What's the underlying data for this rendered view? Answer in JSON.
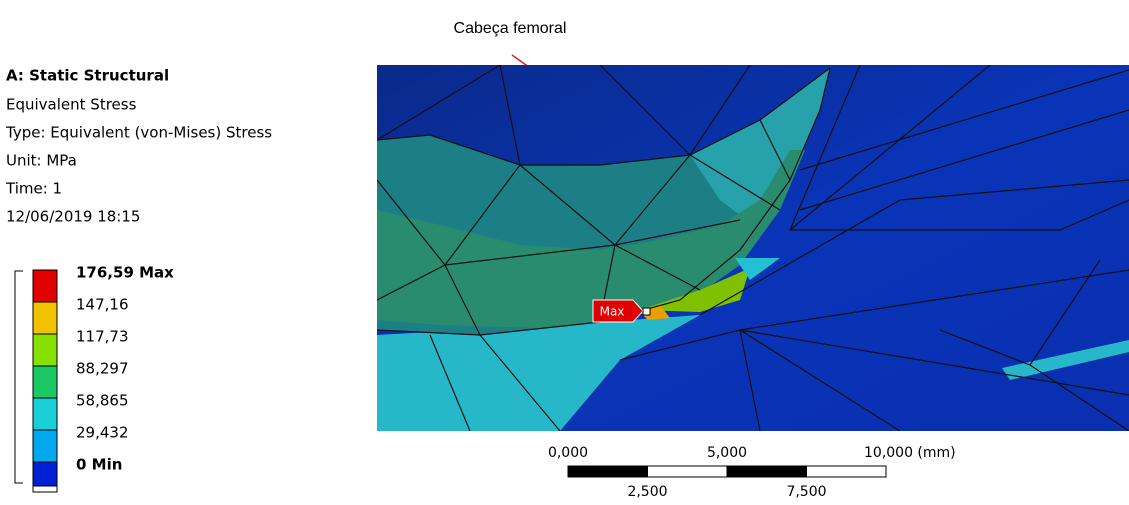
{
  "annotation": "Cabeça femoral",
  "info": {
    "title": "A: Static Structural",
    "lines": [
      "Equivalent Stress",
      "Type: Equivalent (von-Mises) Stress",
      "Unit: MPa",
      "Time: 1",
      "12/06/2019 18:15"
    ]
  },
  "legend": [
    {
      "label": "176,59 Max",
      "color": "#e00000"
    },
    {
      "label": "147,16",
      "color": "#f2c200"
    },
    {
      "label": "117,73",
      "color": "#86e000"
    },
    {
      "label": "88,297",
      "color": "#1cc864"
    },
    {
      "label": "58,865",
      "color": "#1ad0d8"
    },
    {
      "label": "29,432",
      "color": "#00a8f0"
    },
    {
      "label": "0 Min",
      "color": "#0020d8"
    }
  ],
  "max_tag": "Max",
  "scale_bar": {
    "top_labels": [
      "0,000",
      "5,000",
      "10,000 (mm)"
    ],
    "bottom_labels": [
      "2,500",
      "7,500"
    ]
  }
}
